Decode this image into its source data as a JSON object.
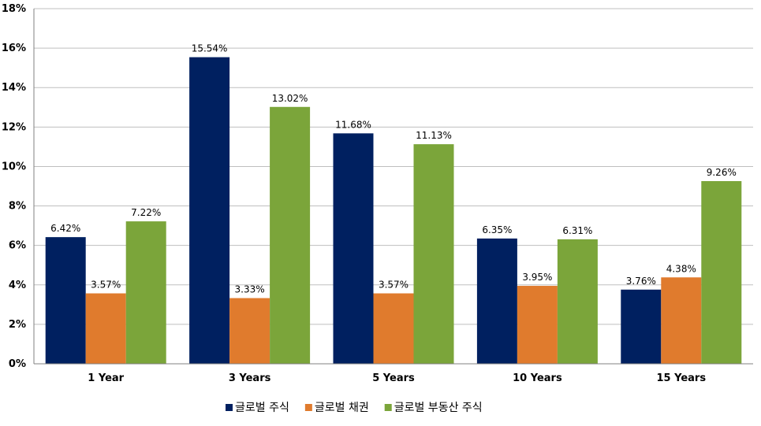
{
  "chart_data": {
    "type": "bar",
    "categories": [
      "1 Year",
      "3 Years",
      "5 Years",
      "10 Years",
      "15 Years"
    ],
    "series": [
      {
        "name": "글로벌 주식",
        "color": "#002060",
        "values": [
          6.42,
          15.54,
          11.68,
          6.35,
          3.76
        ],
        "labels": [
          "6.42%",
          "15.54%",
          "11.68%",
          "6.35%",
          "3.76%"
        ]
      },
      {
        "name": "글로벌 채권",
        "color": "#E07B2D",
        "values": [
          3.57,
          3.33,
          3.57,
          3.95,
          4.38
        ],
        "labels": [
          "3.57%",
          "3.33%",
          "3.57%",
          "3.95%",
          "4.38%"
        ]
      },
      {
        "name": "글로벌 부동산 주식",
        "color": "#7BA53A",
        "values": [
          7.22,
          13.02,
          11.13,
          6.31,
          9.26
        ],
        "labels": [
          "7.22%",
          "13.02%",
          "11.13%",
          "6.31%",
          "9.26%"
        ]
      }
    ],
    "ylim": [
      0,
      18
    ],
    "yticks": [
      0,
      2,
      4,
      6,
      8,
      10,
      12,
      14,
      16,
      18
    ],
    "ytick_labels": [
      "0%",
      "2%",
      "4%",
      "6%",
      "8%",
      "10%",
      "12%",
      "14%",
      "16%",
      "18%"
    ],
    "grid": true,
    "legend_position": "bottom"
  }
}
